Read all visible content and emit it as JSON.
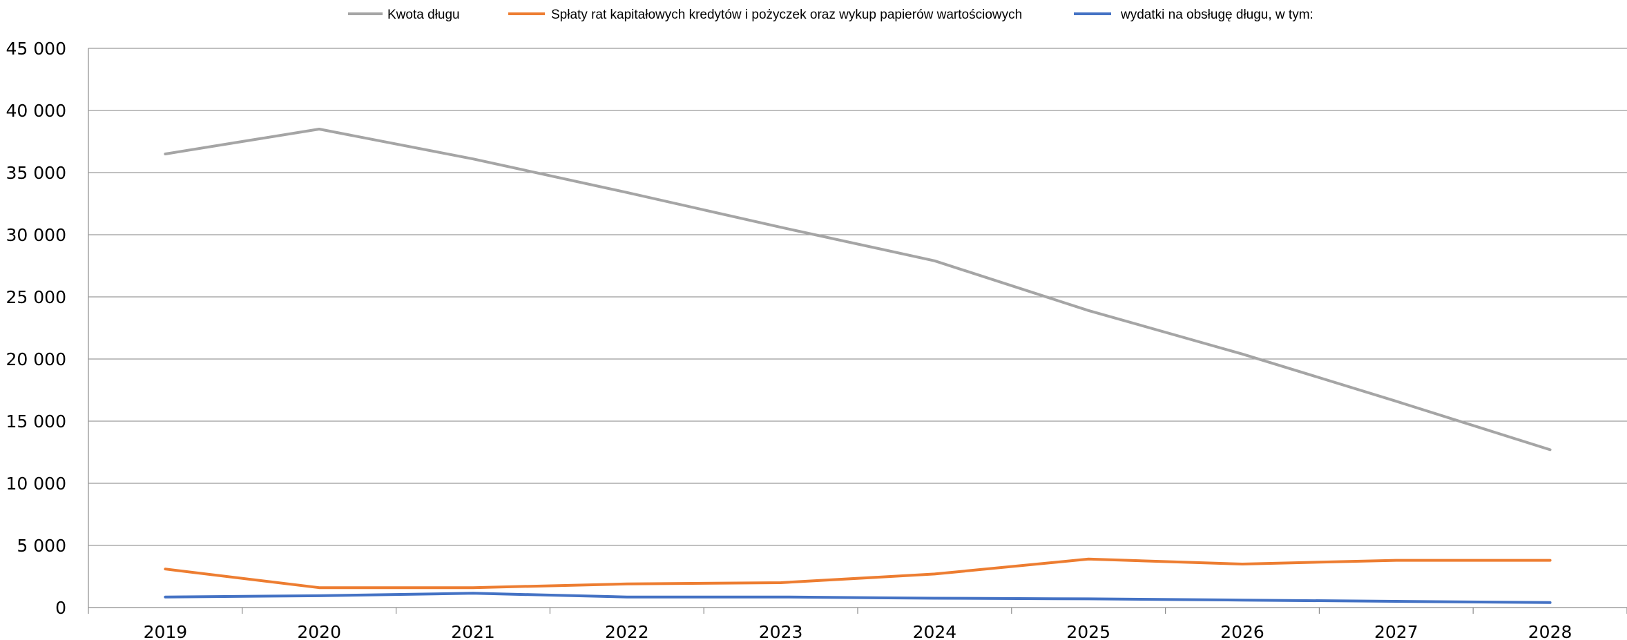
{
  "chart_data": {
    "type": "line",
    "title": "",
    "xlabel": "",
    "ylabel": "",
    "categories": [
      "2019",
      "2020",
      "2021",
      "2022",
      "2023",
      "2024",
      "2025",
      "2026",
      "2027",
      "2028"
    ],
    "ylim": [
      0,
      45000
    ],
    "y_ticks": [
      0,
      5000,
      10000,
      15000,
      20000,
      25000,
      30000,
      35000,
      40000,
      45000
    ],
    "y_tick_labels": [
      "0",
      "5 000",
      "10 000",
      "15 000",
      "20 000",
      "25 000",
      "30 000",
      "35 000",
      "40 000",
      "45 000"
    ],
    "grid": "horizontal",
    "legend_position": "top",
    "series": [
      {
        "name": "Kwota długu",
        "color": "#a5a5a5",
        "values": [
          36500,
          38500,
          36100,
          33400,
          30600,
          27900,
          23900,
          20400,
          16600,
          12700
        ]
      },
      {
        "name": "Spłaty rat kapitałowych kredytów i pożyczek oraz wykup papierów wartościowych",
        "color": "#ed7d31",
        "values": [
          3100,
          1600,
          1600,
          1900,
          2000,
          2700,
          3900,
          3500,
          3800,
          3800
        ]
      },
      {
        "name": "wydatki na obsługę długu, w tym:",
        "color": "#4472c4",
        "values": [
          850,
          950,
          1150,
          850,
          850,
          750,
          700,
          600,
          500,
          400
        ]
      }
    ]
  }
}
